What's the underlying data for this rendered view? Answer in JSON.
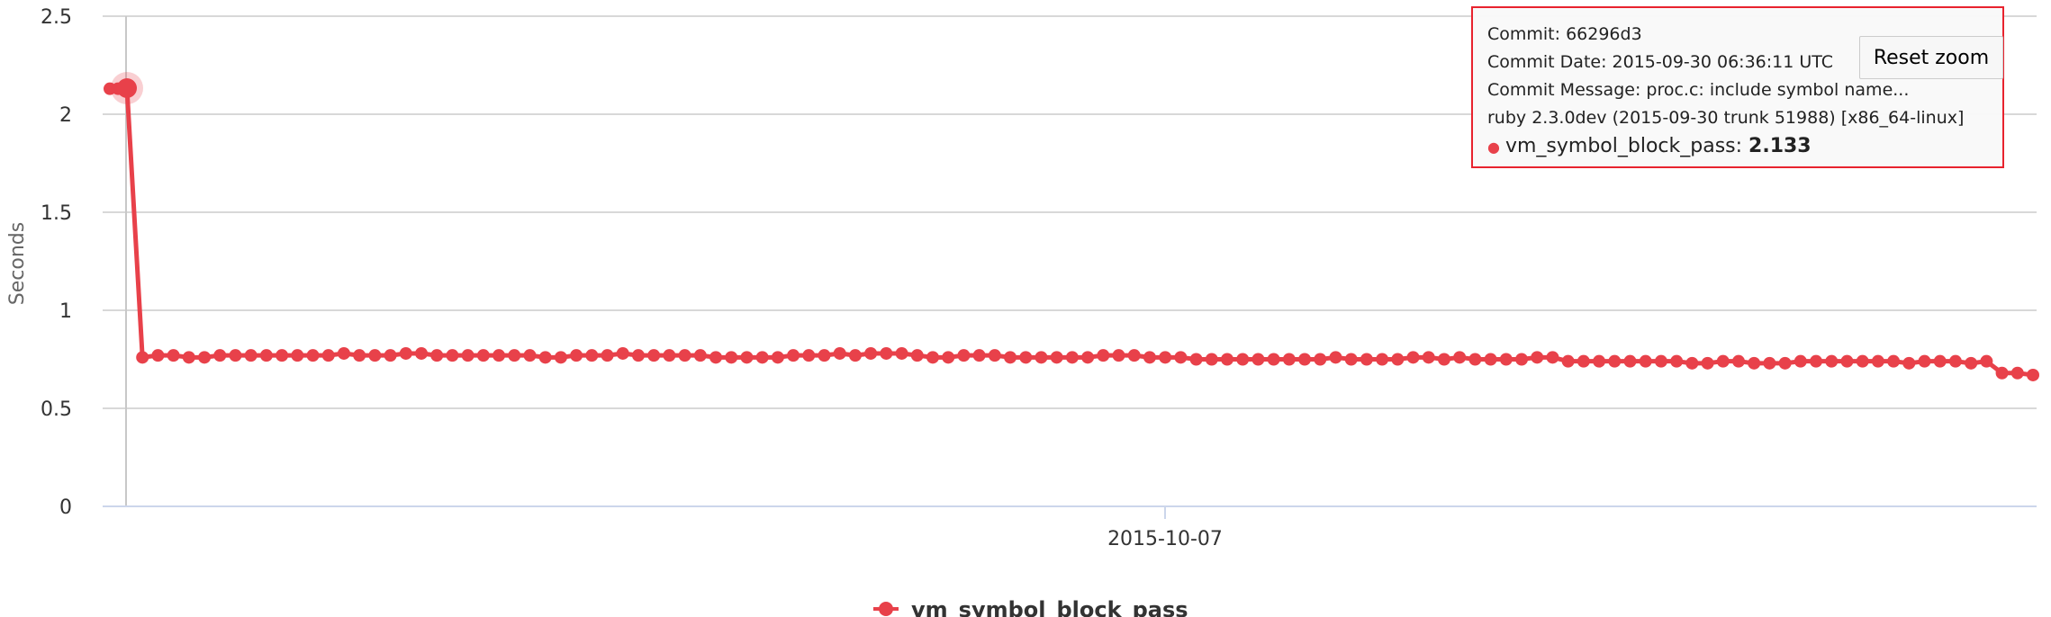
{
  "colors": {
    "series": "#e8414a",
    "grid": "#d8d8d8",
    "axis": "#ccd6eb",
    "tooltip_border": "#e8232e"
  },
  "chart_data": {
    "type": "line",
    "title": "",
    "xlabel": "",
    "ylabel": "Seconds",
    "ylim": [
      0,
      2.5
    ],
    "y_ticks": [
      "0",
      "0.5",
      "1",
      "1.5",
      "2",
      "2.5"
    ],
    "x_ticks": [
      "2015-10-07"
    ],
    "grid": true,
    "legend_position": "bottom-center",
    "series": [
      {
        "name": "vm_symbol_block_pass",
        "values": [
          2.13,
          2.13,
          2.133,
          0.76,
          0.77,
          0.77,
          0.76,
          0.76,
          0.77,
          0.77,
          0.77,
          0.77,
          0.77,
          0.77,
          0.77,
          0.77,
          0.78,
          0.77,
          0.77,
          0.77,
          0.78,
          0.78,
          0.77,
          0.77,
          0.77,
          0.77,
          0.77,
          0.77,
          0.77,
          0.76,
          0.76,
          0.77,
          0.77,
          0.77,
          0.78,
          0.77,
          0.77,
          0.77,
          0.77,
          0.77,
          0.76,
          0.76,
          0.76,
          0.76,
          0.76,
          0.77,
          0.77,
          0.77,
          0.78,
          0.77,
          0.78,
          0.78,
          0.78,
          0.77,
          0.76,
          0.76,
          0.77,
          0.77,
          0.77,
          0.76,
          0.76,
          0.76,
          0.76,
          0.76,
          0.76,
          0.77,
          0.77,
          0.77,
          0.76,
          0.76,
          0.76,
          0.75,
          0.75,
          0.75,
          0.75,
          0.75,
          0.75,
          0.75,
          0.75,
          0.75,
          0.76,
          0.75,
          0.75,
          0.75,
          0.75,
          0.76,
          0.76,
          0.75,
          0.76,
          0.75,
          0.75,
          0.75,
          0.75,
          0.76,
          0.76,
          0.74,
          0.74,
          0.74,
          0.74,
          0.74,
          0.74,
          0.74,
          0.74,
          0.73,
          0.73,
          0.74,
          0.74,
          0.73,
          0.73,
          0.73,
          0.74,
          0.74,
          0.74,
          0.74,
          0.74,
          0.74,
          0.74,
          0.73,
          0.74,
          0.74,
          0.74,
          0.73,
          0.74,
          0.68,
          0.68,
          0.67
        ]
      }
    ],
    "highlighted_index": 2
  },
  "tooltip": {
    "commit": "Commit: 66296d3",
    "date": "Commit Date: 2015-09-30 06:36:11 UTC",
    "message": "Commit Message: proc.c: include symbol name...",
    "version": "ruby 2.3.0dev (2015-09-30 trunk 51988) [x86_64-linux]",
    "series_name": "vm_symbol_block_pass",
    "separator": ": ",
    "value": "2.133"
  },
  "reset_zoom_label": "Reset zoom"
}
